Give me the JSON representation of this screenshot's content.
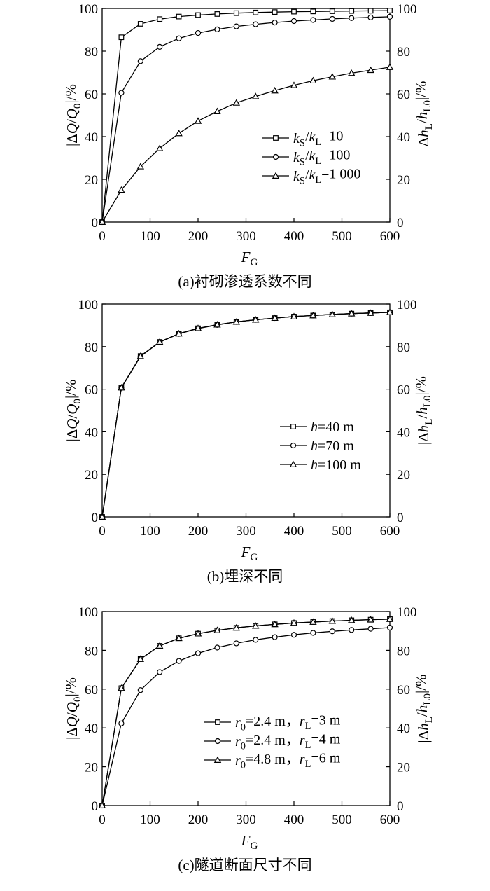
{
  "chart_data": [
    {
      "type": "line",
      "caption": "(a)衬砌渗透系数不同",
      "xlabel": "F_G",
      "ylabel_left": "|ΔQ/Q_0|/%",
      "ylabel_right": "|Δh_L/h_L0|/%",
      "xlim": [
        0,
        600
      ],
      "ylim": [
        0,
        100
      ],
      "xticks": [
        0,
        100,
        200,
        300,
        400,
        500,
        600
      ],
      "yticks": [
        0,
        20,
        40,
        60,
        80,
        100
      ],
      "legend_position": "center-right",
      "grid": false,
      "x": [
        0,
        40,
        80,
        120,
        160,
        200,
        240,
        280,
        320,
        360,
        400,
        440,
        480,
        520,
        560,
        600
      ],
      "series": [
        {
          "name": "k_S/k_L=10",
          "marker": "square",
          "values": [
            0,
            86.5,
            92.8,
            95.0,
            96.2,
            96.9,
            97.4,
            97.8,
            98.1,
            98.3,
            98.5,
            98.6,
            98.7,
            98.8,
            98.9,
            99.0
          ]
        },
        {
          "name": "k_S/k_L=100",
          "marker": "circle",
          "values": [
            0,
            60.5,
            75.3,
            82.0,
            86.0,
            88.5,
            90.2,
            91.6,
            92.6,
            93.4,
            94.1,
            94.6,
            95.1,
            95.5,
            95.8,
            96.1
          ]
        },
        {
          "name": "k_S/k_L=1 000",
          "marker": "triangle",
          "values": [
            0,
            15.0,
            26.0,
            34.5,
            41.5,
            47.3,
            51.8,
            55.8,
            58.8,
            61.5,
            64.0,
            66.2,
            68.0,
            69.7,
            71.1,
            72.5
          ]
        }
      ]
    },
    {
      "type": "line",
      "caption": "(b)埋深不同",
      "xlabel": "F_G",
      "ylabel_left": "|ΔQ/Q_0|/%",
      "ylabel_right": "|Δh_L/h_L0|/%",
      "xlim": [
        0,
        600
      ],
      "ylim": [
        0,
        100
      ],
      "xticks": [
        0,
        100,
        200,
        300,
        400,
        500,
        600
      ],
      "yticks": [
        0,
        20,
        40,
        60,
        80,
        100
      ],
      "legend_position": "center-right",
      "grid": false,
      "x": [
        0,
        40,
        80,
        120,
        160,
        200,
        240,
        280,
        320,
        360,
        400,
        440,
        480,
        520,
        560,
        600
      ],
      "series": [
        {
          "name": "h=40 m",
          "marker": "square",
          "values": [
            0,
            60.8,
            75.6,
            82.2,
            86.1,
            88.6,
            90.3,
            91.6,
            92.6,
            93.4,
            94.1,
            94.6,
            95.1,
            95.5,
            95.8,
            96.1
          ]
        },
        {
          "name": "h=70 m",
          "marker": "circle",
          "values": [
            0,
            60.6,
            75.4,
            82.1,
            86.0,
            88.5,
            90.2,
            91.6,
            92.6,
            93.4,
            94.1,
            94.6,
            95.1,
            95.5,
            95.8,
            96.1
          ]
        },
        {
          "name": "h=100 m",
          "marker": "triangle",
          "values": [
            0,
            60.7,
            75.5,
            82.2,
            86.1,
            88.6,
            90.3,
            91.6,
            92.6,
            93.4,
            94.1,
            94.6,
            95.1,
            95.5,
            95.8,
            96.1
          ]
        }
      ]
    },
    {
      "type": "line",
      "caption": "(c)隧道断面尺寸不同",
      "xlabel": "F_G",
      "ylabel_left": "|ΔQ/Q_0|/%",
      "ylabel_right": "|Δh_L/h_L0|/%",
      "xlim": [
        0,
        600
      ],
      "ylim": [
        0,
        100
      ],
      "xticks": [
        0,
        100,
        200,
        300,
        400,
        500,
        600
      ],
      "yticks": [
        0,
        20,
        40,
        60,
        80,
        100
      ],
      "legend_position": "center-right",
      "grid": false,
      "x": [
        0,
        40,
        80,
        120,
        160,
        200,
        240,
        280,
        320,
        360,
        400,
        440,
        480,
        520,
        560,
        600
      ],
      "series": [
        {
          "name": "r_0=2.4 m，r_L=3 m",
          "marker": "square",
          "values": [
            0,
            60.5,
            75.5,
            82.3,
            86.2,
            88.6,
            90.3,
            91.6,
            92.6,
            93.4,
            94.1,
            94.6,
            95.1,
            95.5,
            95.8,
            96.1
          ]
        },
        {
          "name": "r_0=2.4 m，r_L=4 m",
          "marker": "circle",
          "values": [
            0,
            42.3,
            59.5,
            68.8,
            74.5,
            78.5,
            81.4,
            83.6,
            85.4,
            86.8,
            88.0,
            89.0,
            89.8,
            90.5,
            91.1,
            91.7
          ]
        },
        {
          "name": "r_0=4.8 m，r_L=6 m",
          "marker": "triangle",
          "values": [
            0,
            60.5,
            75.5,
            82.3,
            86.2,
            88.6,
            90.3,
            91.6,
            92.6,
            93.4,
            94.1,
            94.6,
            95.1,
            95.5,
            95.8,
            96.1
          ]
        }
      ]
    }
  ]
}
